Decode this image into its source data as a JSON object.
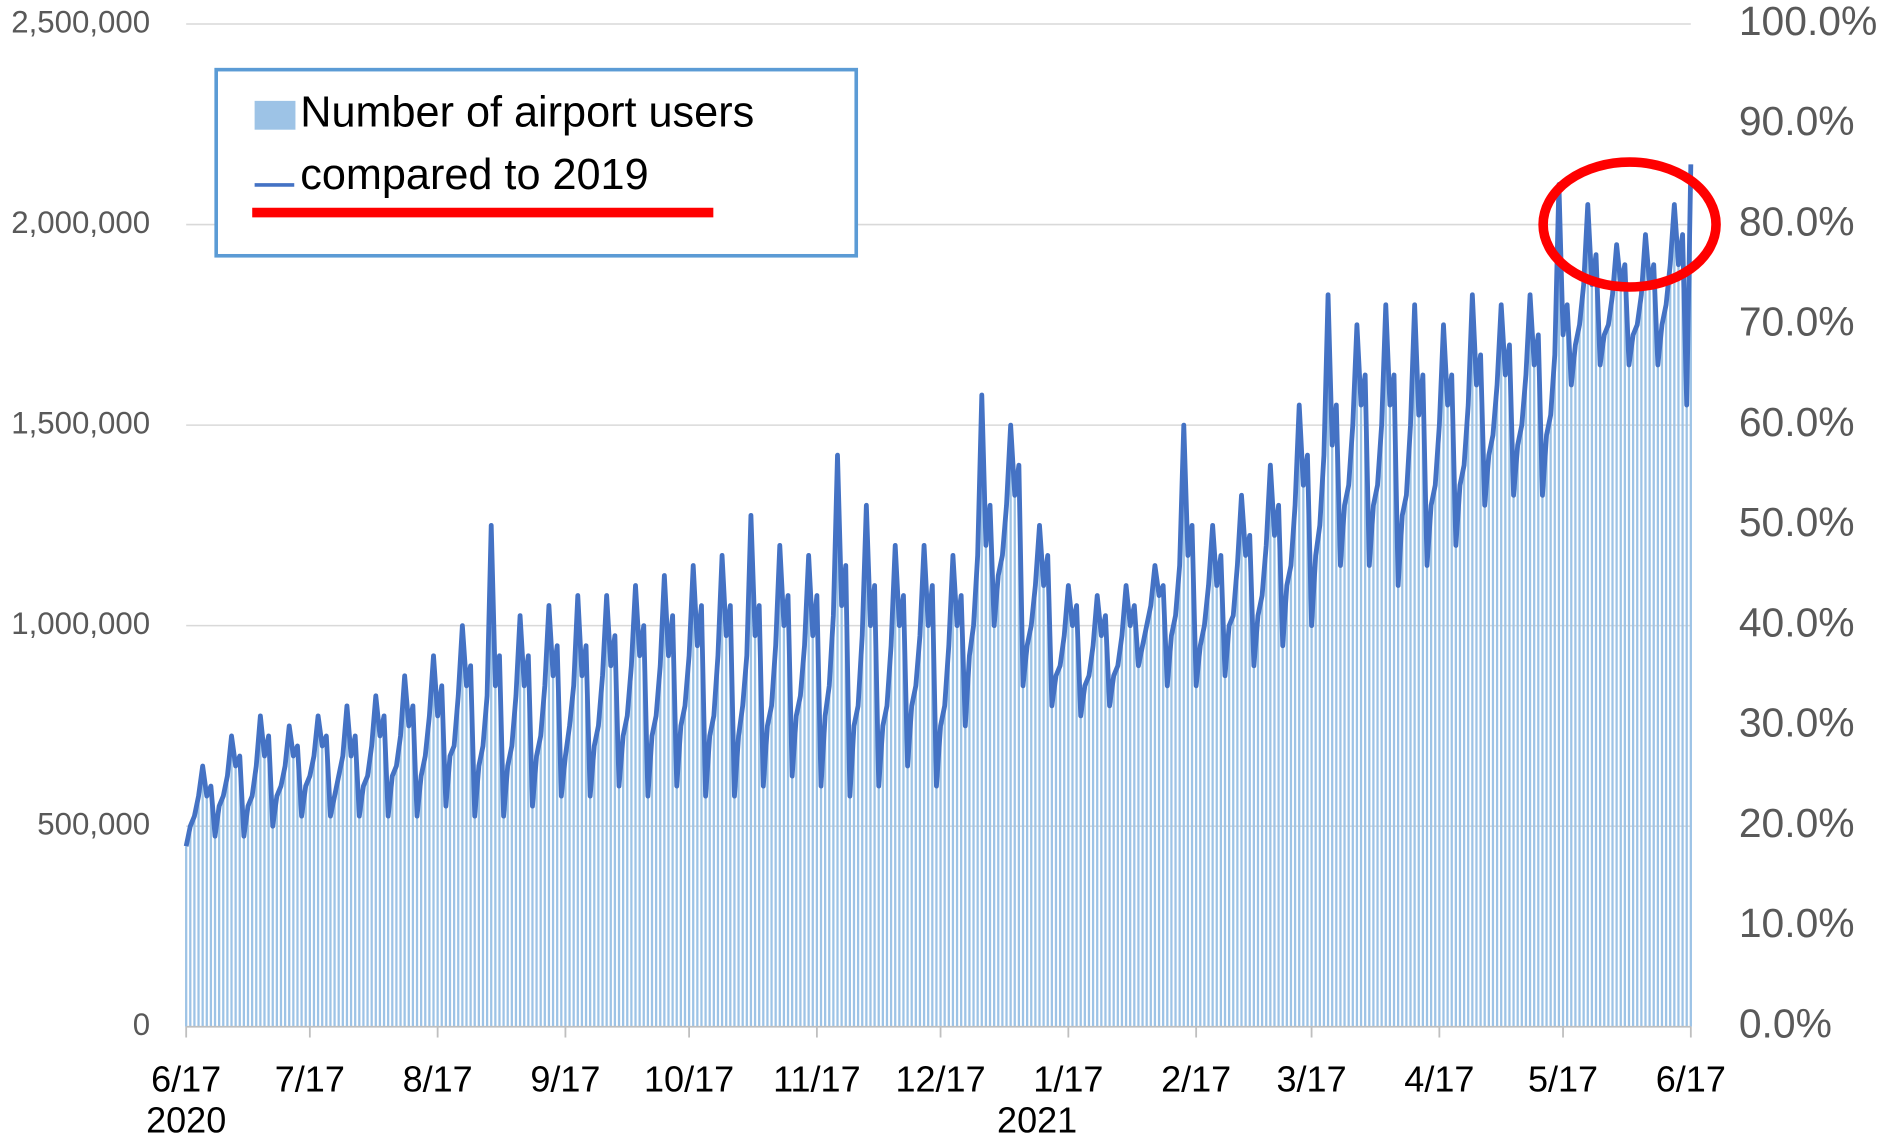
{
  "chart_data": {
    "type": "bar",
    "categories": [
      "6/17",
      null,
      null,
      null,
      null,
      null,
      null,
      null,
      null,
      null,
      null,
      null,
      null,
      null,
      null,
      null,
      null,
      null,
      null,
      null,
      null,
      null,
      null,
      null,
      null,
      null,
      null,
      null,
      null,
      null,
      "7/17",
      null,
      null,
      null,
      null,
      null,
      null,
      null,
      null,
      null,
      null,
      null,
      null,
      null,
      null,
      null,
      null,
      null,
      null,
      null,
      null,
      null,
      null,
      null,
      null,
      null,
      null,
      null,
      null,
      null,
      null,
      "8/17",
      null,
      null,
      null,
      null,
      null,
      null,
      null,
      null,
      null,
      null,
      null,
      null,
      null,
      null,
      null,
      null,
      null,
      null,
      null,
      null,
      null,
      null,
      null,
      null,
      null,
      null,
      null,
      null,
      null,
      null,
      "9/17",
      null,
      null,
      null,
      null,
      null,
      null,
      null,
      null,
      null,
      null,
      null,
      null,
      null,
      null,
      null,
      null,
      null,
      null,
      null,
      null,
      null,
      null,
      null,
      null,
      null,
      null,
      null,
      null,
      null,
      "10/17",
      null,
      null,
      null,
      null,
      null,
      null,
      null,
      null,
      null,
      null,
      null,
      null,
      null,
      null,
      null,
      null,
      null,
      null,
      null,
      null,
      null,
      null,
      null,
      null,
      null,
      null,
      null,
      null,
      null,
      null,
      "11/17",
      null,
      null,
      null,
      null,
      null,
      null,
      null,
      null,
      null,
      null,
      null,
      null,
      null,
      null,
      null,
      null,
      null,
      null,
      null,
      null,
      null,
      null,
      null,
      null,
      null,
      null,
      null,
      null,
      null,
      "12/17",
      null,
      null,
      null,
      null,
      null,
      null,
      null,
      null,
      null,
      null,
      null,
      null,
      null,
      null,
      null,
      null,
      null,
      null,
      null,
      null,
      null,
      null,
      null,
      null,
      null,
      null,
      null,
      null,
      null,
      null,
      "1/17",
      null,
      null,
      null,
      null,
      null,
      null,
      null,
      null,
      null,
      null,
      null,
      null,
      null,
      null,
      null,
      null,
      null,
      null,
      null,
      null,
      null,
      null,
      null,
      null,
      null,
      null,
      null,
      null,
      null,
      null,
      "2/17",
      null,
      null,
      null,
      null,
      null,
      null,
      null,
      null,
      null,
      null,
      null,
      null,
      null,
      null,
      null,
      null,
      null,
      null,
      null,
      null,
      null,
      null,
      null,
      null,
      null,
      null,
      null,
      "3/17",
      null,
      null,
      null,
      null,
      null,
      null,
      null,
      null,
      null,
      null,
      null,
      null,
      null,
      null,
      null,
      null,
      null,
      null,
      null,
      null,
      null,
      null,
      null,
      null,
      null,
      null,
      null,
      null,
      null,
      null,
      "4/17",
      null,
      null,
      null,
      null,
      null,
      null,
      null,
      null,
      null,
      null,
      null,
      null,
      null,
      null,
      null,
      null,
      null,
      null,
      null,
      null,
      null,
      null,
      null,
      null,
      null,
      null,
      null,
      null,
      null,
      "5/17",
      null,
      null,
      null,
      null,
      null,
      null,
      null,
      null,
      null,
      null,
      null,
      null,
      null,
      null,
      null,
      null,
      null,
      null,
      null,
      null,
      null,
      null,
      null,
      null,
      null,
      null,
      null,
      null,
      null,
      null,
      "6/17"
    ],
    "annotations": [
      "2020",
      "2021"
    ],
    "series": [
      {
        "name": "Number of airport users",
        "type": "bar",
        "color": "#9dc3e6",
        "values": [
          450000,
          500000,
          525000,
          575000,
          650000,
          575000,
          600000,
          475000,
          550000,
          575000,
          625000,
          725000,
          650000,
          675000,
          475000,
          550000,
          575000,
          650000,
          775000,
          675000,
          725000,
          500000,
          575000,
          600000,
          650000,
          750000,
          675000,
          700000,
          525000,
          600000,
          625000,
          675000,
          775000,
          700000,
          725000,
          525000,
          575000,
          625000,
          675000,
          800000,
          675000,
          725000,
          525000,
          600000,
          625000,
          700000,
          825000,
          725000,
          775000,
          525000,
          625000,
          650000,
          725000,
          875000,
          750000,
          800000,
          525000,
          625000,
          675000,
          775000,
          925000,
          775000,
          850000,
          550000,
          675000,
          700000,
          825000,
          1000000,
          850000,
          900000,
          525000,
          650000,
          700000,
          825000,
          1250000,
          850000,
          925000,
          525000,
          650000,
          700000,
          825000,
          1025000,
          850000,
          925000,
          550000,
          675000,
          725000,
          850000,
          1050000,
          875000,
          950000,
          575000,
          675000,
          750000,
          850000,
          1075000,
          875000,
          950000,
          575000,
          700000,
          750000,
          875000,
          1075000,
          900000,
          975000,
          600000,
          725000,
          775000,
          900000,
          1100000,
          925000,
          1000000,
          575000,
          725000,
          775000,
          900000,
          1125000,
          925000,
          1025000,
          600000,
          750000,
          800000,
          925000,
          1150000,
          950000,
          1050000,
          575000,
          725000,
          775000,
          925000,
          1175000,
          975000,
          1050000,
          575000,
          725000,
          800000,
          925000,
          1275000,
          975000,
          1050000,
          600000,
          750000,
          800000,
          950000,
          1200000,
          1000000,
          1075000,
          625000,
          775000,
          825000,
          950000,
          1175000,
          975000,
          1075000,
          600000,
          775000,
          850000,
          1025000,
          1425000,
          1050000,
          1150000,
          575000,
          750000,
          800000,
          975000,
          1300000,
          1000000,
          1100000,
          600000,
          750000,
          800000,
          950000,
          1200000,
          1000000,
          1075000,
          650000,
          800000,
          850000,
          975000,
          1200000,
          1000000,
          1100000,
          600000,
          750000,
          800000,
          950000,
          1175000,
          1000000,
          1075000,
          750000,
          925000,
          1000000,
          1175000,
          1575000,
          1200000,
          1300000,
          1000000,
          1125000,
          1175000,
          1300000,
          1500000,
          1325000,
          1400000,
          850000,
          950000,
          1000000,
          1100000,
          1250000,
          1100000,
          1175000,
          800000,
          875000,
          900000,
          975000,
          1100000,
          1000000,
          1050000,
          775000,
          850000,
          875000,
          950000,
          1075000,
          975000,
          1025000,
          800000,
          875000,
          900000,
          975000,
          1100000,
          1000000,
          1050000,
          900000,
          950000,
          1000000,
          1050000,
          1150000,
          1075000,
          1100000,
          850000,
          975000,
          1025000,
          1150000,
          1500000,
          1175000,
          1250000,
          850000,
          950000,
          1000000,
          1100000,
          1250000,
          1100000,
          1175000,
          875000,
          1000000,
          1025000,
          1150000,
          1325000,
          1175000,
          1225000,
          900000,
          1025000,
          1075000,
          1200000,
          1400000,
          1225000,
          1300000,
          950000,
          1100000,
          1150000,
          1300000,
          1550000,
          1350000,
          1425000,
          1000000,
          1175000,
          1250000,
          1425000,
          1825000,
          1450000,
          1550000,
          1150000,
          1300000,
          1350000,
          1500000,
          1750000,
          1550000,
          1625000,
          1150000,
          1300000,
          1350000,
          1500000,
          1800000,
          1550000,
          1625000,
          1100000,
          1275000,
          1325000,
          1500000,
          1800000,
          1525000,
          1625000,
          1150000,
          1300000,
          1350000,
          1500000,
          1750000,
          1550000,
          1625000,
          1200000,
          1350000,
          1400000,
          1550000,
          1825000,
          1600000,
          1675000,
          1300000,
          1425000,
          1475000,
          1600000,
          1800000,
          1625000,
          1700000,
          1325000,
          1450000,
          1500000,
          1625000,
          1825000,
          1650000,
          1725000,
          1325000,
          1475000,
          1525000,
          1675000,
          2100000,
          1725000,
          1800000,
          1600000,
          1700000,
          1750000,
          1850000,
          2050000,
          1850000,
          1925000,
          1650000,
          1725000,
          1750000,
          1825000,
          1950000,
          1850000,
          1900000,
          1650000,
          1725000,
          1750000,
          1825000,
          1975000,
          1850000,
          1900000,
          1650000,
          1750000,
          1800000,
          1900000,
          2050000,
          1900000,
          1975000,
          1550000,
          2150000
        ]
      },
      {
        "name": "compared to 2019",
        "type": "line",
        "axis": "y2",
        "color": "#4472c4",
        "values": [
          18,
          20,
          21,
          23,
          26,
          23,
          24,
          19,
          22,
          23,
          25,
          29,
          26,
          27,
          19,
          22,
          23,
          26,
          31,
          27,
          29,
          20,
          23,
          24,
          26,
          30,
          27,
          28,
          21,
          24,
          25,
          27,
          31,
          28,
          29,
          21,
          23,
          25,
          27,
          32,
          27,
          29,
          21,
          24,
          25,
          28,
          33,
          29,
          31,
          21,
          25,
          26,
          29,
          35,
          30,
          32,
          21,
          25,
          27,
          31,
          37,
          31,
          34,
          22,
          27,
          28,
          33,
          40,
          34,
          36,
          21,
          26,
          28,
          33,
          50,
          34,
          37,
          21,
          26,
          28,
          33,
          41,
          34,
          37,
          22,
          27,
          29,
          34,
          42,
          35,
          38,
          23,
          27,
          30,
          34,
          43,
          35,
          38,
          23,
          28,
          30,
          35,
          43,
          36,
          39,
          24,
          29,
          31,
          36,
          44,
          37,
          40,
          23,
          29,
          31,
          36,
          45,
          37,
          41,
          24,
          30,
          32,
          37,
          46,
          38,
          42,
          23,
          29,
          31,
          37,
          47,
          39,
          42,
          23,
          29,
          32,
          37,
          51,
          39,
          42,
          24,
          30,
          32,
          38,
          48,
          40,
          43,
          25,
          31,
          33,
          38,
          47,
          39,
          43,
          24,
          31,
          34,
          41,
          57,
          42,
          46,
          23,
          30,
          32,
          39,
          52,
          40,
          44,
          24,
          30,
          32,
          38,
          48,
          40,
          43,
          26,
          32,
          34,
          39,
          48,
          40,
          44,
          24,
          30,
          32,
          38,
          47,
          40,
          43,
          30,
          37,
          40,
          47,
          63,
          48,
          52,
          40,
          45,
          47,
          52,
          60,
          53,
          56,
          34,
          38,
          40,
          44,
          50,
          44,
          47,
          32,
          35,
          36,
          39,
          44,
          40,
          42,
          31,
          34,
          35,
          38,
          43,
          39,
          41,
          32,
          35,
          36,
          39,
          44,
          40,
          42,
          36,
          38,
          40,
          42,
          46,
          43,
          44,
          34,
          39,
          41,
          46,
          60,
          47,
          50,
          34,
          38,
          40,
          44,
          50,
          44,
          47,
          35,
          40,
          41,
          46,
          53,
          47,
          49,
          36,
          41,
          43,
          48,
          56,
          49,
          52,
          38,
          44,
          46,
          52,
          62,
          54,
          57,
          40,
          47,
          50,
          57,
          73,
          58,
          62,
          46,
          52,
          54,
          60,
          70,
          62,
          65,
          46,
          52,
          54,
          60,
          72,
          62,
          65,
          44,
          51,
          53,
          60,
          72,
          61,
          65,
          46,
          52,
          54,
          60,
          70,
          62,
          65,
          48,
          54,
          56,
          62,
          73,
          64,
          67,
          52,
          57,
          59,
          64,
          72,
          65,
          68,
          53,
          58,
          60,
          65,
          73,
          66,
          69,
          53,
          59,
          61,
          67,
          84,
          69,
          72,
          64,
          68,
          70,
          74,
          82,
          74,
          77,
          66,
          69,
          70,
          73,
          78,
          74,
          76,
          66,
          69,
          70,
          73,
          79,
          74,
          76,
          66,
          70,
          72,
          76,
          82,
          76,
          79,
          62,
          86
        ]
      }
    ],
    "ylim": [
      0,
      2500000
    ],
    "yticks": [
      0,
      {
        "value": 500000,
        "label": "500,000"
      },
      {
        "value": 1000000,
        "label": "1,000,000"
      },
      {
        "value": 1500000,
        "label": "1,500,000"
      },
      {
        "value": 2000000,
        "label": "2,000,000"
      },
      {
        "value": 2500000,
        "label": "2,500,000"
      }
    ],
    "y2lim": [
      0,
      100
    ],
    "y2ticks": [
      {
        "value": 0,
        "label": "0.0%"
      },
      {
        "value": 10,
        "label": "10.0%"
      },
      {
        "value": 20,
        "label": "20.0%"
      },
      {
        "value": 30,
        "label": "30.0%"
      },
      {
        "value": 40,
        "label": "40.0%"
      },
      {
        "value": 50,
        "label": "50.0%"
      },
      {
        "value": 60,
        "label": "60.0%"
      },
      {
        "value": 70,
        "label": "70.0%"
      },
      {
        "value": 80,
        "label": "80.0%"
      },
      {
        "value": 90,
        "label": "90.0%"
      },
      {
        "value": 100,
        "label": "100.0%"
      }
    ],
    "grid": true
  }
}
